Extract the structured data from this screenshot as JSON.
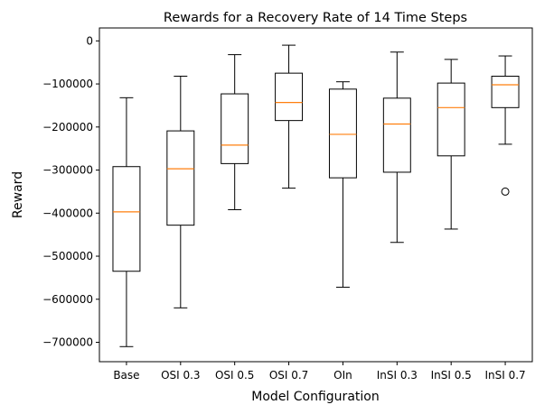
{
  "chart_data": {
    "type": "box",
    "title": "Rewards for a Recovery Rate of 14 Time Steps",
    "xlabel": "Model Configuration",
    "ylabel": "Reward",
    "ylim": [
      -745000,
      30000
    ],
    "yticks": [
      0,
      -100000,
      -200000,
      -300000,
      -400000,
      -500000,
      -600000,
      -700000
    ],
    "ytick_labels": [
      "0",
      "−100000",
      "−200000",
      "−300000",
      "−400000",
      "−500000",
      "−600000",
      "−700000"
    ],
    "grid": false,
    "median_color": "#ff7f0e",
    "categories": [
      "Base",
      "OSI 0.3",
      "OSI 0.5",
      "OSI 0.7",
      "OIn",
      "InSI 0.3",
      "InSI 0.5",
      "InSI 0.7"
    ],
    "boxes": [
      {
        "whisker_low": -710000,
        "q1": -535000,
        "median": -397000,
        "q3": -292000,
        "whisker_high": -132000,
        "fliers": []
      },
      {
        "whisker_low": -620000,
        "q1": -428000,
        "median": -297000,
        "q3": -209000,
        "whisker_high": -82000,
        "fliers": []
      },
      {
        "whisker_low": -392000,
        "q1": -285000,
        "median": -242000,
        "q3": -123000,
        "whisker_high": -32000,
        "fliers": []
      },
      {
        "whisker_low": -342000,
        "q1": -185000,
        "median": -143000,
        "q3": -75000,
        "whisker_high": -10000,
        "fliers": []
      },
      {
        "whisker_low": -572000,
        "q1": -318000,
        "median": -217000,
        "q3": -112000,
        "whisker_high": -95000,
        "fliers": []
      },
      {
        "whisker_low": -468000,
        "q1": -305000,
        "median": -193000,
        "q3": -133000,
        "whisker_high": -26000,
        "fliers": []
      },
      {
        "whisker_low": -437000,
        "q1": -267000,
        "median": -155000,
        "q3": -98000,
        "whisker_high": -43000,
        "fliers": []
      },
      {
        "whisker_low": -240000,
        "q1": -155000,
        "median": -102000,
        "q3": -82000,
        "whisker_high": -35000,
        "fliers": [
          -350000
        ]
      }
    ]
  }
}
